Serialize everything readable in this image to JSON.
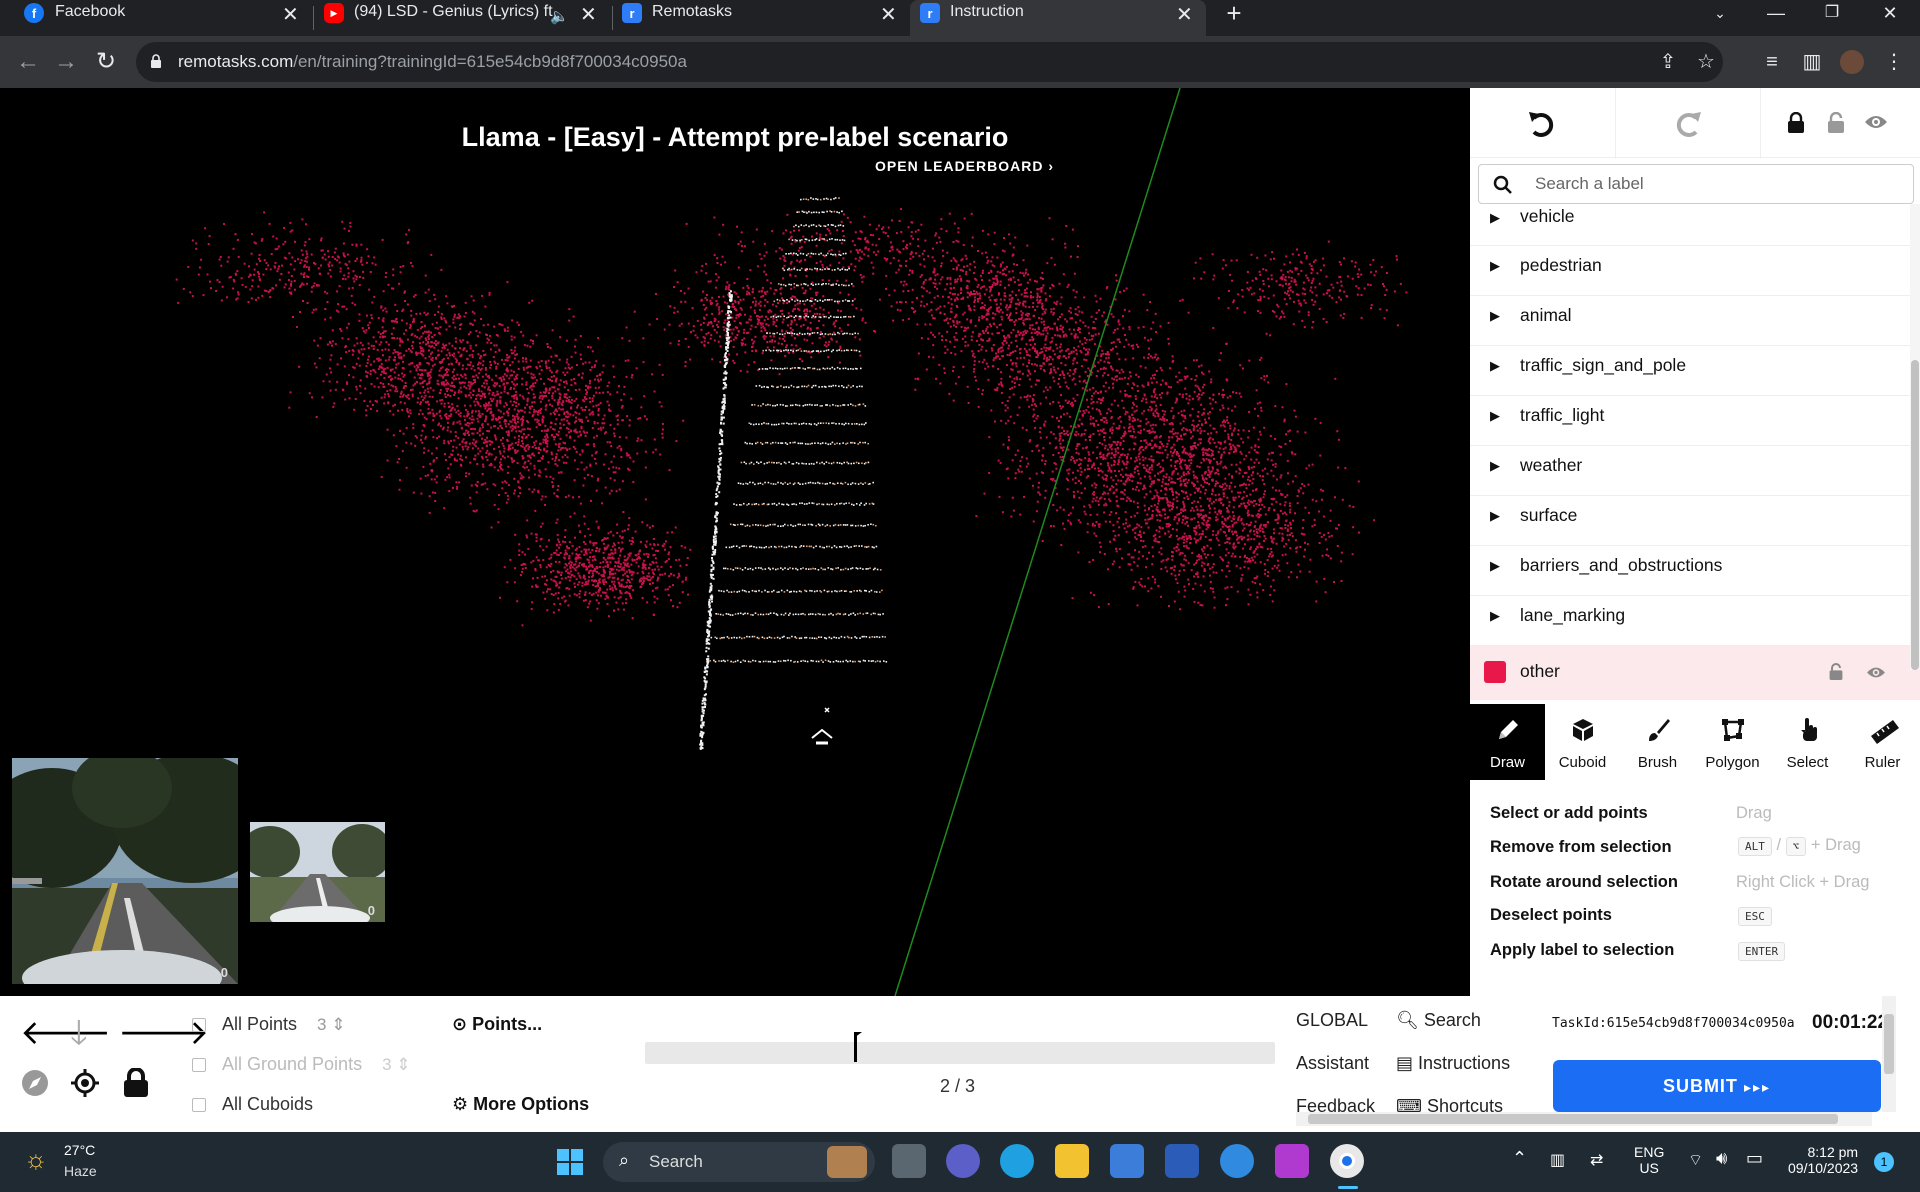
{
  "browser": {
    "tabs": [
      {
        "label": "Facebook",
        "icon": "facebook-icon",
        "color": "#1877f2"
      },
      {
        "label": "(94) LSD - Genius (Lyrics) ft.",
        "icon": "youtube-icon",
        "color": "#ff0000"
      },
      {
        "label": "Remotasks",
        "icon": "remotasks-icon",
        "color": "#2e7cf6"
      },
      {
        "label": "Instruction",
        "icon": "remotasks-icon",
        "color": "#2e7cf6"
      }
    ],
    "url_host": "remotasks.com",
    "url_path": "/en/training?trainingId=615e54cb9d8f700034c0950a"
  },
  "scene": {
    "title": "Llama - [Easy] - Attempt pre-label scenario",
    "leaderboard": "OPEN LEADERBOARD",
    "cam1_count": "0",
    "cam2_count": "0"
  },
  "panel": {
    "search_placeholder": "Search a label",
    "labels": [
      "vehicle",
      "pedestrian",
      "animal",
      "traffic_sign_and_pole",
      "traffic_light",
      "weather",
      "surface",
      "barriers_and_obstructions",
      "lane_marking"
    ],
    "selected_label": "other",
    "selected_color": "#e8194a",
    "tools": [
      "Draw",
      "Cuboid",
      "Brush",
      "Polygon",
      "Select",
      "Ruler"
    ],
    "active_tool": "Draw",
    "hints": [
      {
        "action": "Select or add points",
        "shortcut": "Drag"
      },
      {
        "action": "Remove from selection",
        "key1": "ALT",
        "sep": "/",
        "key2": "⌥",
        "shortcut": "+ Drag"
      },
      {
        "action": "Rotate around selection",
        "shortcut": "Right Click + Drag"
      },
      {
        "action": "Deselect points",
        "key1": "ESC"
      },
      {
        "action": "Apply label to selection",
        "key1": "ENTER"
      }
    ]
  },
  "bottom": {
    "all_points": "All Points",
    "all_points_size": "3",
    "all_ground_points": "All Ground Points",
    "ground_points_size": "3",
    "all_cuboids": "All Cuboids",
    "points_menu": "Points...",
    "more_options": "More Options",
    "frame": "2 / 3",
    "frame_progress": 0.33,
    "global": "GLOBAL",
    "assistant": "Assistant",
    "feedback": "Feedback",
    "search": "Search",
    "instructions": "Instructions",
    "shortcuts": "Shortcuts",
    "task_id": "TaskId:615e54cb9d8f700034c0950a",
    "timer": "00:01:22",
    "submit": "SUBMIT"
  },
  "taskbar": {
    "temp": "27°C",
    "condition": "Haze",
    "search": "Search",
    "lang1": "ENG",
    "lang2": "US",
    "time": "8:12 pm",
    "date": "09/10/2023",
    "notifications": "1"
  }
}
